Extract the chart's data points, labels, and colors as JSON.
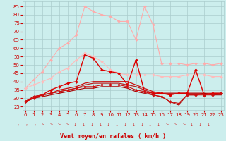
{
  "x": [
    0,
    1,
    2,
    3,
    4,
    5,
    6,
    7,
    8,
    9,
    10,
    11,
    12,
    13,
    14,
    15,
    16,
    17,
    18,
    19,
    20,
    21,
    22,
    23
  ],
  "series": [
    {
      "values": [
        36,
        41,
        46,
        53,
        60,
        63,
        68,
        85,
        82,
        80,
        79,
        76,
        76,
        65,
        85,
        74,
        51,
        51,
        51,
        50,
        51,
        51,
        50,
        51
      ],
      "color": "#ffaaaa",
      "lw": 0.8,
      "marker": "D",
      "ms": 2.0,
      "zorder": 2
    },
    {
      "values": [
        36,
        38,
        40,
        42,
        46,
        48,
        53,
        57,
        55,
        52,
        47,
        45,
        44,
        44,
        44,
        44,
        43,
        43,
        43,
        44,
        44,
        44,
        43,
        43
      ],
      "color": "#ffbbbb",
      "lw": 0.8,
      "marker": "D",
      "ms": 2.0,
      "zorder": 2
    },
    {
      "values": [
        28,
        30,
        32,
        35,
        37,
        39,
        40,
        56,
        54,
        47,
        46,
        45,
        38,
        53,
        34,
        33,
        33,
        32,
        33,
        33,
        47,
        32,
        33,
        33
      ],
      "color": "#dd0000",
      "lw": 1.0,
      "marker": "D",
      "ms": 2.0,
      "zorder": 4
    },
    {
      "values": [
        28,
        31,
        32,
        33,
        35,
        36,
        37,
        39,
        40,
        40,
        40,
        40,
        40,
        38,
        36,
        34,
        33,
        33,
        33,
        33,
        33,
        33,
        33,
        33
      ],
      "color": "#cc1111",
      "lw": 0.9,
      "marker": null,
      "ms": 0,
      "zorder": 3
    },
    {
      "values": [
        28,
        31,
        32,
        33,
        34,
        35,
        36,
        38,
        39,
        39,
        39,
        39,
        38,
        37,
        35,
        33,
        33,
        33,
        33,
        33,
        33,
        33,
        32,
        33
      ],
      "color": "#bb2222",
      "lw": 0.9,
      "marker": null,
      "ms": 0,
      "zorder": 3
    },
    {
      "values": [
        28,
        31,
        32,
        33,
        34,
        35,
        36,
        37,
        37,
        38,
        38,
        38,
        37,
        35,
        34,
        32,
        31,
        28,
        27,
        32,
        32,
        32,
        32,
        33
      ],
      "color": "#cc1111",
      "lw": 0.8,
      "marker": "D",
      "ms": 2.0,
      "zorder": 4
    },
    {
      "values": [
        28,
        30,
        31,
        32,
        33,
        34,
        35,
        36,
        36,
        37,
        37,
        37,
        36,
        34,
        33,
        32,
        31,
        28,
        26,
        32,
        32,
        33,
        32,
        32
      ],
      "color": "#aa0000",
      "lw": 0.8,
      "marker": null,
      "ms": 0,
      "zorder": 3
    }
  ],
  "xlabel": "Vent moyen/en rafales ( km/h )",
  "ylabel_ticks": [
    25,
    30,
    35,
    40,
    45,
    50,
    55,
    60,
    65,
    70,
    75,
    80,
    85
  ],
  "ylim": [
    23,
    88
  ],
  "xlim": [
    -0.3,
    23.3
  ],
  "bg_color": "#cceeed",
  "grid_color": "#aacccc",
  "xlabel_color": "#cc0000",
  "tick_color": "#cc0000",
  "arrows": [
    "→",
    "→",
    "→",
    "↘",
    "↘",
    "↘",
    "↘",
    "↓",
    "↓",
    "↓",
    "↓",
    "↓",
    "↓",
    "↓",
    "↓",
    "↓",
    "↓",
    "↓",
    "↘",
    "↘",
    "↘",
    "↓",
    "↓",
    "↓"
  ]
}
